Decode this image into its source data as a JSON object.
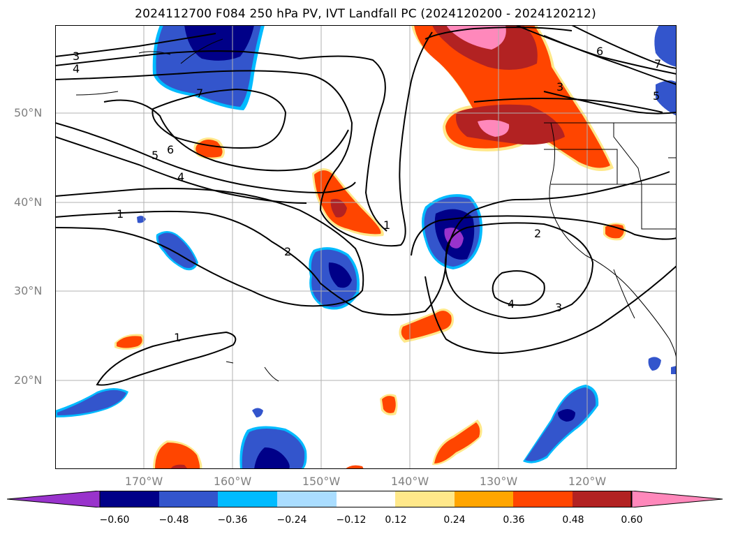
{
  "title": "2024112700 F084 250 hPa PV, IVT Landfall PC (2024120200 - 2024120212)",
  "lat_labels": [
    "50°N",
    "40°N",
    "30°N",
    "20°N"
  ],
  "lon_labels": [
    "170°W",
    "160°W",
    "150°W",
    "140°W",
    "130°W",
    "120°W"
  ],
  "colorbar": {
    "tick_labels": [
      "−0.60",
      "−0.48",
      "−0.36",
      "−0.24",
      "−0.12",
      "0.12",
      "0.24",
      "0.36",
      "0.48",
      "0.60"
    ],
    "colors": [
      "#9933cc",
      "#000088",
      "#3355cc",
      "#00bbff",
      "#aaddff",
      "#ffffff",
      "#ffe88a",
      "#ffa500",
      "#ff4500",
      "#b22222",
      "#ff88bb"
    ]
  },
  "contour_labels": [
    "3",
    "4",
    "7",
    "6",
    "5",
    "4",
    "1",
    "2",
    "1",
    "2",
    "4",
    "3",
    "1",
    "6",
    "7",
    "5",
    "3"
  ]
}
